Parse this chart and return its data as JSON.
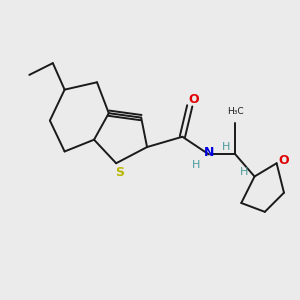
{
  "bg_color": "#ebebeb",
  "bond_color": "#1a1a1a",
  "S_color": "#b8b800",
  "N_color": "#0000e0",
  "O_color": "#e00000",
  "H_color": "#4a9a9a",
  "line_width": 1.4,
  "fig_size": [
    3.0,
    3.0
  ],
  "dpi": 100,
  "xlim": [
    0,
    10
  ],
  "ylim": [
    0,
    10
  ]
}
